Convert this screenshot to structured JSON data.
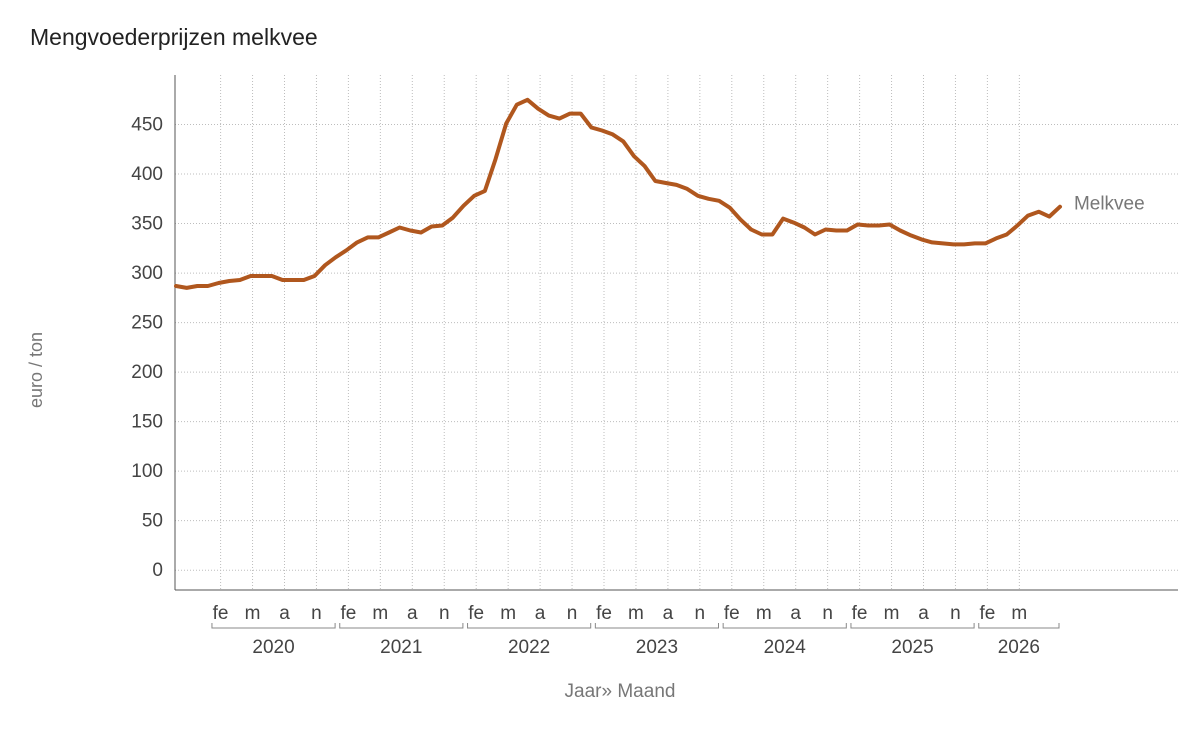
{
  "chart_data": {
    "type": "line",
    "title": "Mengvoederprijzen melkvee",
    "ylabel": "euro / ton",
    "xlabel": "Jaar",
    "xlabel_sub": "Maand",
    "xlabel_sep": "»",
    "ylim": [
      -20,
      500
    ],
    "yticks": [
      0,
      50,
      100,
      150,
      200,
      250,
      300,
      350,
      400,
      450
    ],
    "grid": true,
    "years": [
      "2020",
      "2021",
      "2022",
      "2023",
      "2024",
      "2025",
      "2026"
    ],
    "month_labels": [
      "fe",
      "m",
      "a",
      "n"
    ],
    "series": [
      {
        "name": "Melkvee",
        "color": "#b0571e",
        "start": "2019-10",
        "values": [
          287,
          285,
          287,
          287,
          290,
          292,
          293,
          297,
          297,
          297,
          293,
          293,
          293,
          297,
          308,
          316,
          323,
          331,
          336,
          336,
          341,
          346,
          343,
          341,
          347,
          348,
          356,
          368,
          378,
          383,
          415,
          451,
          470,
          475,
          466,
          459,
          456,
          461,
          461,
          447,
          444,
          440,
          433,
          418,
          408,
          393,
          391,
          389,
          385,
          378,
          375,
          373,
          366,
          354,
          344,
          339,
          339,
          355,
          351,
          346,
          339,
          344,
          343,
          343,
          349,
          348,
          348,
          349,
          343,
          338,
          334,
          331,
          330,
          329,
          329,
          330,
          330,
          335,
          339,
          348,
          358,
          362,
          357,
          367
        ]
      }
    ]
  }
}
